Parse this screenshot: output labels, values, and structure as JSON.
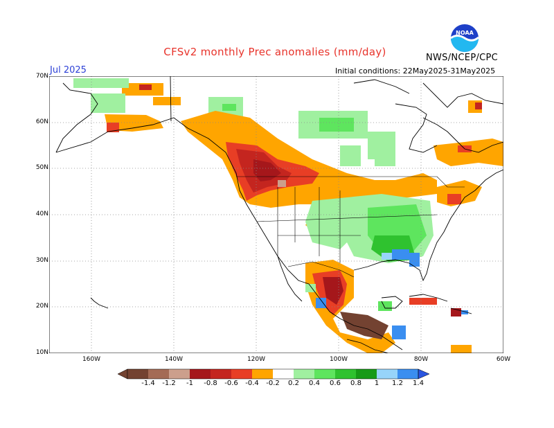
{
  "header": {
    "title": "CFSv2 monthly Prec anomalies (mm/day)",
    "month": "Jul 2025",
    "initial_conditions": "Initial conditions: 22May2025-31May2025",
    "agency": "NWS/NCEP/CPC",
    "logo_text": "NOAA"
  },
  "axes": {
    "y_labels": [
      "70N",
      "60N",
      "50N",
      "40N",
      "30N",
      "20N",
      "10N"
    ],
    "x_labels": [
      "160W",
      "140W",
      "120W",
      "100W",
      "80W",
      "60W"
    ]
  },
  "colorbar": {
    "labels": [
      "-1.4",
      "-1.2",
      "-1",
      "-0.8",
      "-0.6",
      "-0.4",
      "-0.2",
      "0.2",
      "0.4",
      "0.6",
      "0.8",
      "1",
      "1.2",
      "1.4"
    ],
    "colors": [
      "#734231",
      "#a46b55",
      "#cc9f8c",
      "#a5171b",
      "#c4251f",
      "#e83e25",
      "#f7511c",
      "#ffa500",
      "#ffffff",
      "#a0f0a0",
      "#5ee55e",
      "#2fc22f",
      "#179a17",
      "#97d4fa",
      "#3a8ef0",
      "#2a55e0"
    ]
  },
  "anomaly_regions": [
    {
      "name": "Pacific Northwest / Northern Rockies",
      "sign": "dry",
      "max": "-1"
    },
    {
      "name": "Central Plains",
      "sign": "dry",
      "max": "-0.8"
    },
    {
      "name": "Mexico / Central America",
      "sign": "dry",
      "max": "-1.4"
    },
    {
      "name": "Southeast US",
      "sign": "wet",
      "max": "1.4"
    },
    {
      "name": "Hudson Bay region",
      "sign": "wet",
      "max": "0.4"
    },
    {
      "name": "Labrador / Newfoundland",
      "sign": "dry",
      "max": "-0.4"
    },
    {
      "name": "Alaska",
      "sign": "dry",
      "max": "-0.6"
    }
  ]
}
